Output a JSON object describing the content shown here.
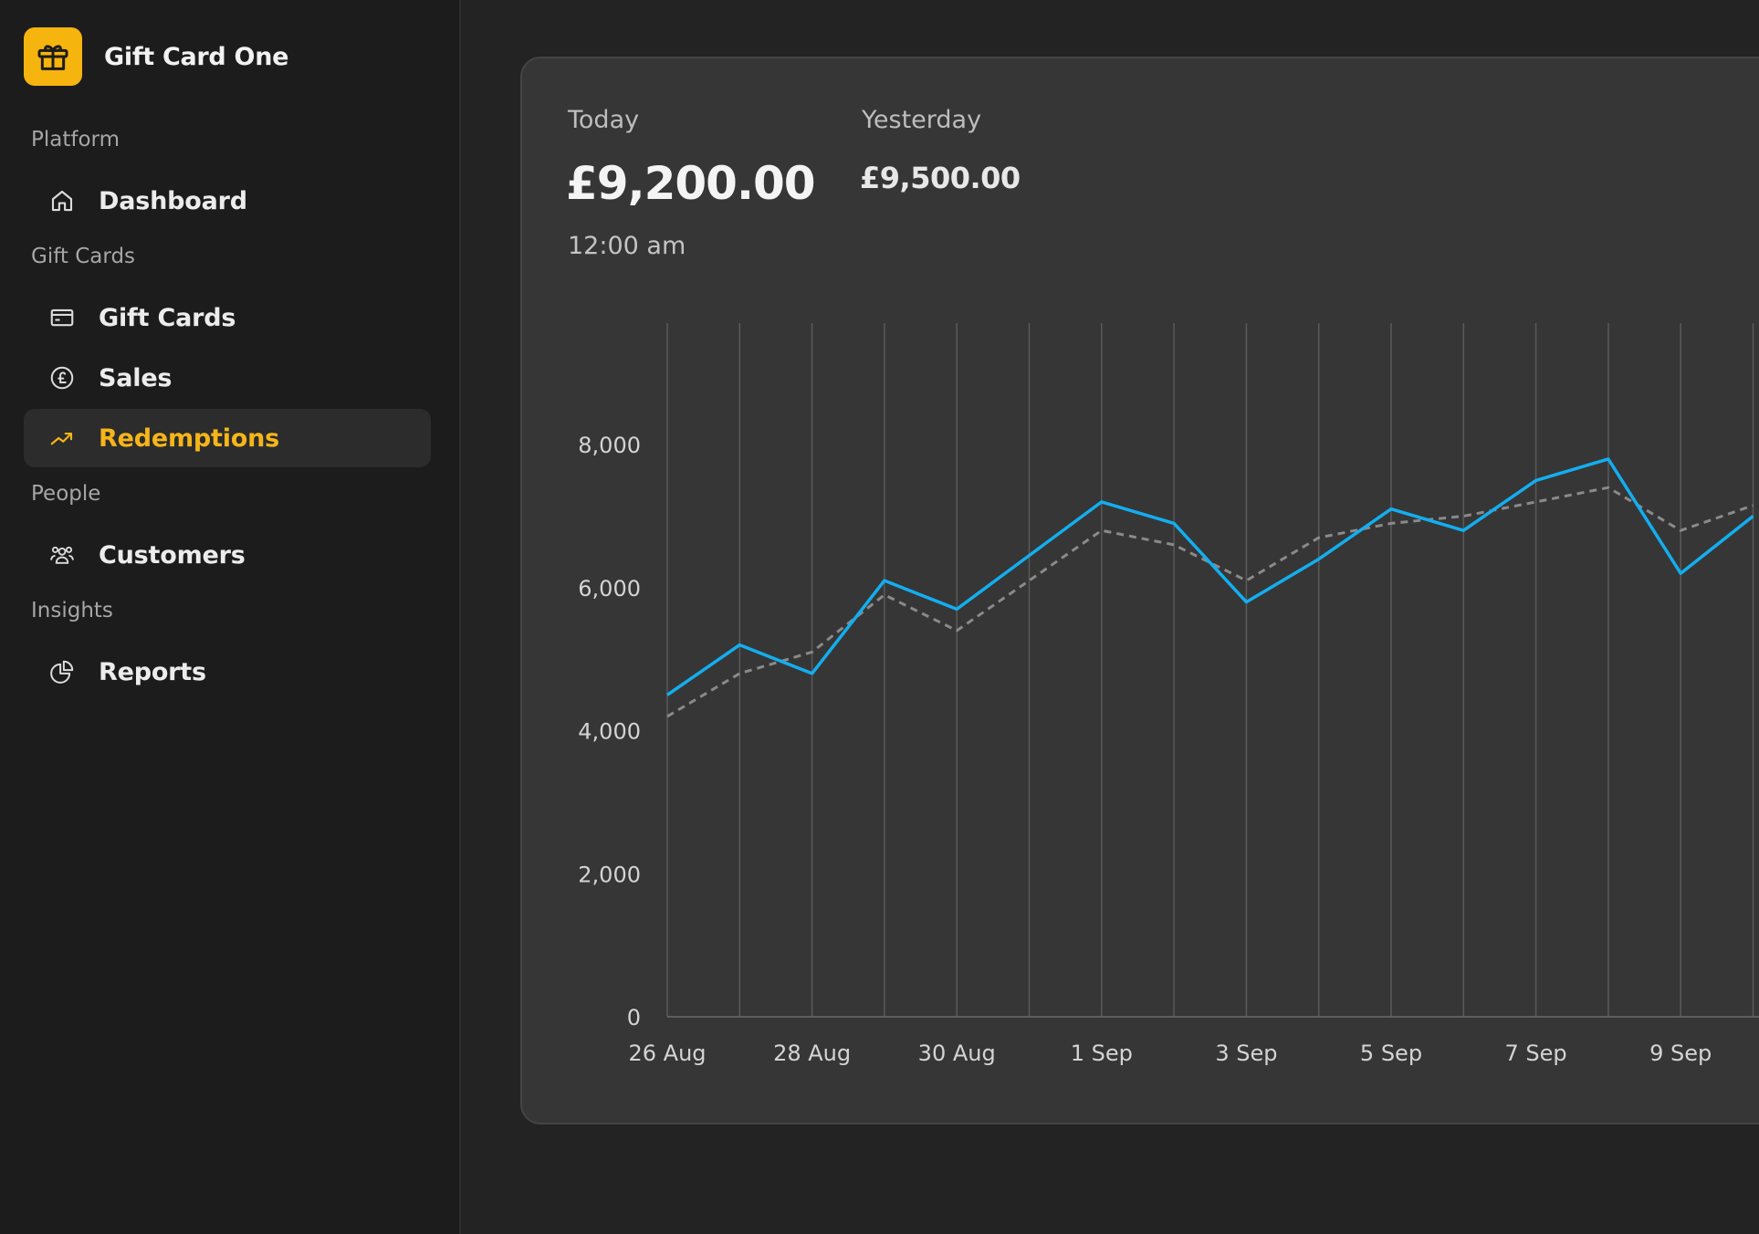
{
  "app": {
    "name": "Gift Card One"
  },
  "colors": {
    "accent": "#f5b51b",
    "series_today": "#13aef0",
    "series_yesterday": "#8a8a8a"
  },
  "sidebar": {
    "sections": [
      {
        "label": "Platform",
        "items": [
          {
            "label": "Dashboard",
            "icon": "home-icon"
          }
        ]
      },
      {
        "label": "Gift Cards",
        "items": [
          {
            "label": "Gift Cards",
            "icon": "card-icon"
          },
          {
            "label": "Sales",
            "icon": "pound-coin-icon"
          },
          {
            "label": "Redemptions",
            "icon": "trending-up-icon",
            "active": true
          }
        ]
      },
      {
        "label": "People",
        "items": [
          {
            "label": "Customers",
            "icon": "users-icon"
          }
        ]
      },
      {
        "label": "Insights",
        "items": [
          {
            "label": "Reports",
            "icon": "pie-chart-icon"
          }
        ]
      }
    ]
  },
  "stats": {
    "today": {
      "label": "Today",
      "value": "£9,200.00",
      "time": "12:00 am"
    },
    "yesterday": {
      "label": "Yesterday",
      "value": "£9,500.00"
    }
  },
  "chart_data": {
    "type": "line",
    "x": [
      "26 Aug",
      "27 Aug",
      "28 Aug",
      "29 Aug",
      "30 Aug",
      "31 Aug",
      "1 Sep",
      "2 Sep",
      "3 Sep",
      "4 Sep",
      "5 Sep",
      "6 Sep",
      "7 Sep",
      "8 Sep",
      "9 Sep",
      "10 Sep"
    ],
    "x_tick_labels": [
      "26 Aug",
      "28 Aug",
      "30 Aug",
      "1 Sep",
      "3 Sep",
      "5 Sep",
      "7 Sep",
      "9 Sep"
    ],
    "y_tick_labels": [
      "0",
      "2,000",
      "4,000",
      "6,000",
      "8,000"
    ],
    "yticks": [
      0,
      2000,
      4000,
      6000,
      8000
    ],
    "ylim": [
      0,
      9700
    ],
    "grid": "vertical",
    "legend": "none",
    "series": [
      {
        "style": "solid",
        "color": "#13aef0",
        "values": [
          4500,
          5200,
          4800,
          6100,
          5700,
          6450,
          7200,
          6900,
          5800,
          6400,
          7100,
          6800,
          7500,
          7800,
          6200,
          7000
        ]
      },
      {
        "style": "dashed",
        "color": "#8a8a8a",
        "values": [
          4200,
          4800,
          5100,
          5900,
          5400,
          6100,
          6800,
          6600,
          6100,
          6700,
          6900,
          7000,
          7200,
          7400,
          6800,
          7150
        ]
      }
    ]
  }
}
